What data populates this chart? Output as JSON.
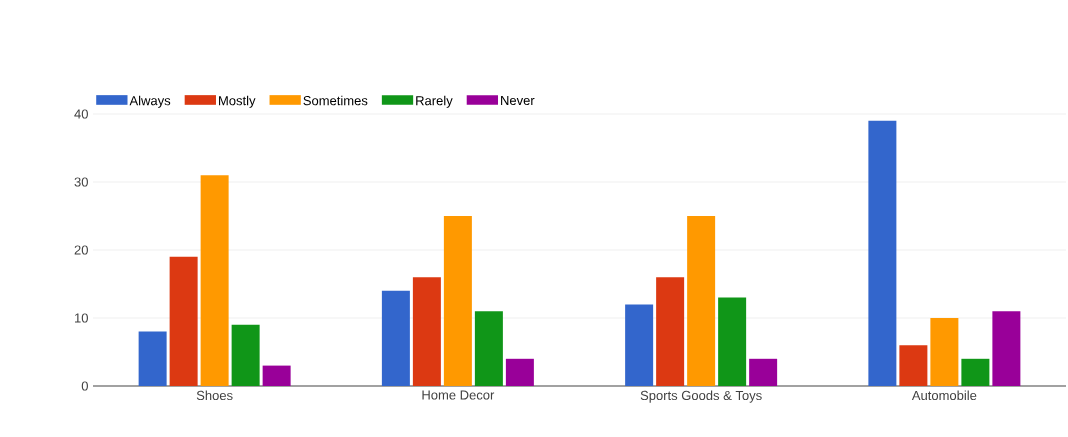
{
  "chart_data": {
    "type": "bar",
    "categories": [
      "Shoes",
      "Home Decor",
      "Sports Goods & Toys",
      "Automobile"
    ],
    "series": [
      {
        "name": "Always",
        "color": "#3366cc",
        "values": [
          8,
          14,
          12,
          39
        ]
      },
      {
        "name": "Mostly",
        "color": "#dc3912",
        "values": [
          19,
          16,
          16,
          6
        ]
      },
      {
        "name": "Sometimes",
        "color": "#ff9900",
        "values": [
          31,
          25,
          25,
          10
        ]
      },
      {
        "name": "Rarely",
        "color": "#109618",
        "values": [
          9,
          11,
          13,
          4
        ]
      },
      {
        "name": "Never",
        "color": "#990099",
        "values": [
          3,
          4,
          4,
          11
        ]
      }
    ],
    "ylim": [
      0,
      40
    ],
    "yticks": [
      0,
      10,
      20,
      30,
      40
    ],
    "grid": "y",
    "legend": "top left"
  }
}
